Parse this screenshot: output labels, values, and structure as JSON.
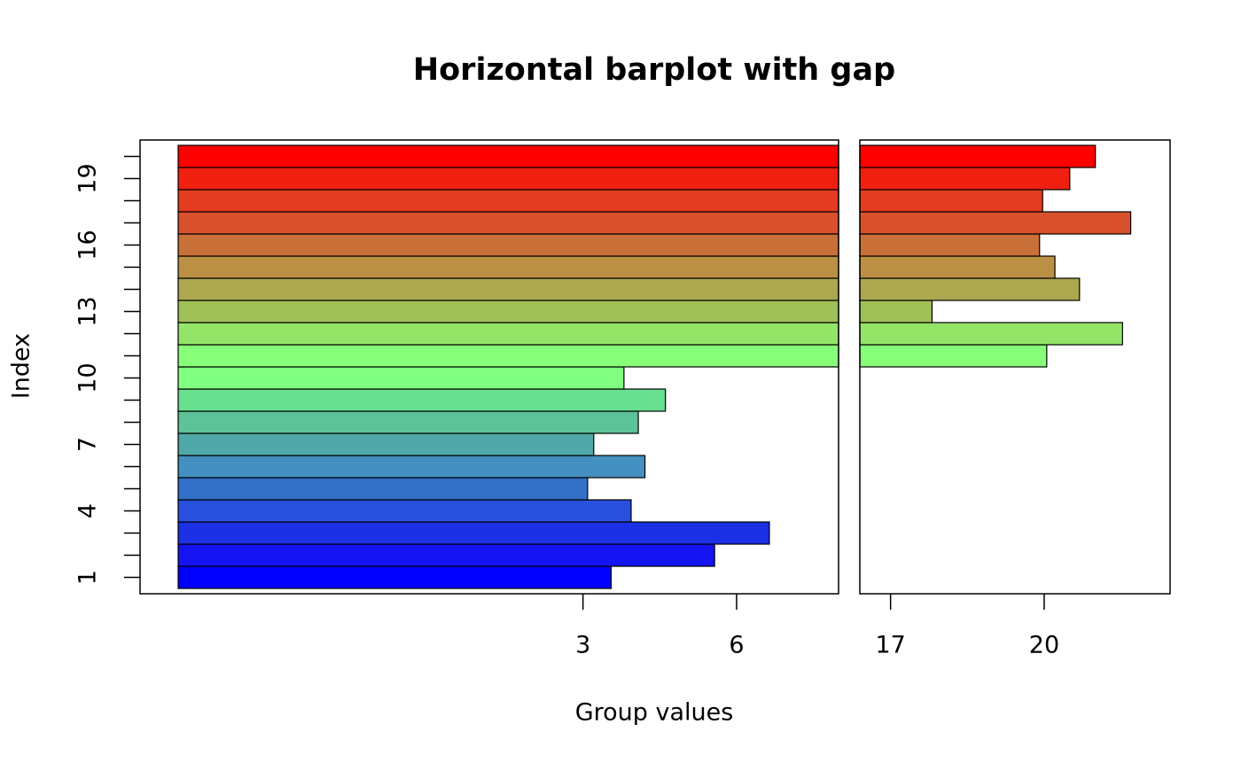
{
  "chart_data": {
    "type": "gap-barh",
    "title": "Horizontal barplot with gap",
    "xlabel": "Group values",
    "ylabel": "Index",
    "categories": [
      "1",
      null,
      null,
      "4",
      null,
      null,
      "7",
      null,
      null,
      "10",
      null,
      null,
      "13",
      null,
      null,
      "16",
      null,
      null,
      "19",
      null
    ],
    "values": [
      3.55,
      5.57,
      6.64,
      3.94,
      3.09,
      4.21,
      3.21,
      4.08,
      4.61,
      3.8,
      20.05,
      21.53,
      17.81,
      20.69,
      20.21,
      19.91,
      21.69,
      19.97,
      20.5,
      21.0
    ],
    "colors": [
      "#0000ff",
      "#1414f2",
      "#1c30e6",
      "#2850dc",
      "#3470c8",
      "#4490c0",
      "#50a8a8",
      "#5cc498",
      "#68e090",
      "#80ff80",
      "#88ff78",
      "#94e468",
      "#a0c058",
      "#aca850",
      "#bc9044",
      "#c87038",
      "#d8502c",
      "#e43c20",
      "#f02010",
      "#ff0000"
    ],
    "xlim": [
      -5.65,
      22.45
    ],
    "gap": [
      8,
      16.4
    ],
    "xticks": [
      3,
      6,
      17,
      20
    ]
  }
}
